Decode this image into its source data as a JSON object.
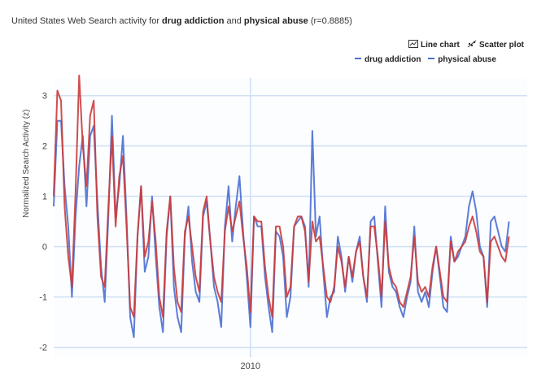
{
  "header": {
    "title_prefix": "United States Web Search activity for ",
    "term1": "drug addiction",
    "and": " and ",
    "term2": "physical abuse",
    "correlation": " (r=0.8885)"
  },
  "controls": {
    "line_chart_label": "Line chart",
    "scatter_plot_label": "Scatter plot"
  },
  "colors": {
    "drug_addiction": "#4a6fd1",
    "physical_abuse": "#cc3b3b",
    "grid": "#cfe0f3",
    "background": "#ffffff"
  },
  "chart_data": {
    "type": "line",
    "ylabel": "Normalized Search Activity (z)",
    "yticks": [
      3,
      2,
      1,
      0,
      -1,
      -2
    ],
    "ylim": [
      -2.2,
      3.35
    ],
    "xticks": [
      {
        "label": "2010",
        "x": 54
      }
    ],
    "xlim": [
      0,
      130
    ],
    "grid": true,
    "legend_position": "top-right",
    "series": [
      {
        "name": "drug addiction",
        "color": "#4a6fd1",
        "values": [
          0.8,
          2.5,
          2.5,
          1.2,
          0.4,
          -1.0,
          0.6,
          1.6,
          2.2,
          0.8,
          2.2,
          2.4,
          0.9,
          -0.4,
          -1.1,
          0.6,
          2.6,
          0.6,
          1.2,
          2.2,
          0.6,
          -1.4,
          -1.8,
          0.2,
          1.2,
          -0.5,
          -0.2,
          1.0,
          -0.2,
          -1.2,
          -1.7,
          0.2,
          1.0,
          -0.8,
          -1.4,
          -1.7,
          0.2,
          0.8,
          -0.3,
          -0.9,
          -1.1,
          0.6,
          0.9,
          0.1,
          -0.8,
          -1.1,
          -1.6,
          0.4,
          1.2,
          0.1,
          0.8,
          1.4,
          0.3,
          -0.6,
          -1.6,
          0.6,
          0.4,
          0.4,
          -0.6,
          -1.2,
          -1.7,
          0.3,
          0.2,
          -0.2,
          -1.4,
          -1.0,
          0.4,
          0.5,
          0.6,
          0.4,
          -0.8,
          2.3,
          0.2,
          0.6,
          -0.5,
          -1.4,
          -1.0,
          -0.9,
          0.2,
          -0.2,
          -0.9,
          -0.2,
          -0.7,
          -0.1,
          0.2,
          -0.6,
          -1.1,
          0.5,
          0.6,
          -0.3,
          -1.2,
          0.8,
          -0.5,
          -0.8,
          -0.9,
          -1.2,
          -1.4,
          -1.0,
          -0.7,
          0.4,
          -0.9,
          -1.1,
          -0.9,
          -1.2,
          -0.5,
          0.0,
          -0.6,
          -1.2,
          -1.3,
          0.2,
          -0.3,
          -0.2,
          0.0,
          0.2,
          0.8,
          1.1,
          0.7,
          0.0,
          -0.2,
          -1.2,
          0.5,
          0.6,
          0.3,
          0.0,
          -0.1,
          0.5
        ]
      },
      {
        "name": "physical abuse",
        "color": "#cc3b3b",
        "values": [
          1.0,
          3.1,
          2.9,
          0.8,
          -0.2,
          -0.8,
          1.1,
          3.4,
          2.0,
          1.2,
          2.6,
          2.9,
          0.6,
          -0.6,
          -0.8,
          0.8,
          2.2,
          0.4,
          1.4,
          1.8,
          0.4,
          -1.2,
          -1.4,
          0.2,
          1.2,
          -0.2,
          0.1,
          0.9,
          0.1,
          -1.0,
          -1.4,
          0.3,
          1.0,
          -0.4,
          -1.1,
          -1.3,
          0.3,
          0.6,
          0.0,
          -0.6,
          -0.9,
          0.7,
          1.0,
          0.1,
          -0.6,
          -0.9,
          -1.1,
          0.3,
          0.8,
          0.3,
          0.6,
          0.9,
          0.2,
          -0.4,
          -1.3,
          0.6,
          0.5,
          0.5,
          -0.4,
          -1.0,
          -1.4,
          0.4,
          0.4,
          0.0,
          -1.0,
          -0.8,
          0.4,
          0.6,
          0.6,
          0.3,
          -0.7,
          0.5,
          0.1,
          0.2,
          -0.4,
          -1.0,
          -1.1,
          -0.8,
          0.0,
          -0.3,
          -0.8,
          -0.2,
          -0.6,
          -0.1,
          0.1,
          -0.6,
          -1.0,
          0.4,
          0.4,
          -0.2,
          -1.0,
          0.5,
          -0.4,
          -0.7,
          -0.8,
          -1.1,
          -1.2,
          -0.9,
          -0.6,
          0.2,
          -0.7,
          -0.9,
          -0.8,
          -1.0,
          -0.4,
          0.0,
          -0.5,
          -1.0,
          -1.1,
          0.1,
          -0.3,
          -0.1,
          0.0,
          0.1,
          0.4,
          0.6,
          0.3,
          -0.1,
          -0.2,
          -1.1,
          0.1,
          0.2,
          0.0,
          -0.2,
          -0.3,
          0.2
        ]
      }
    ]
  }
}
